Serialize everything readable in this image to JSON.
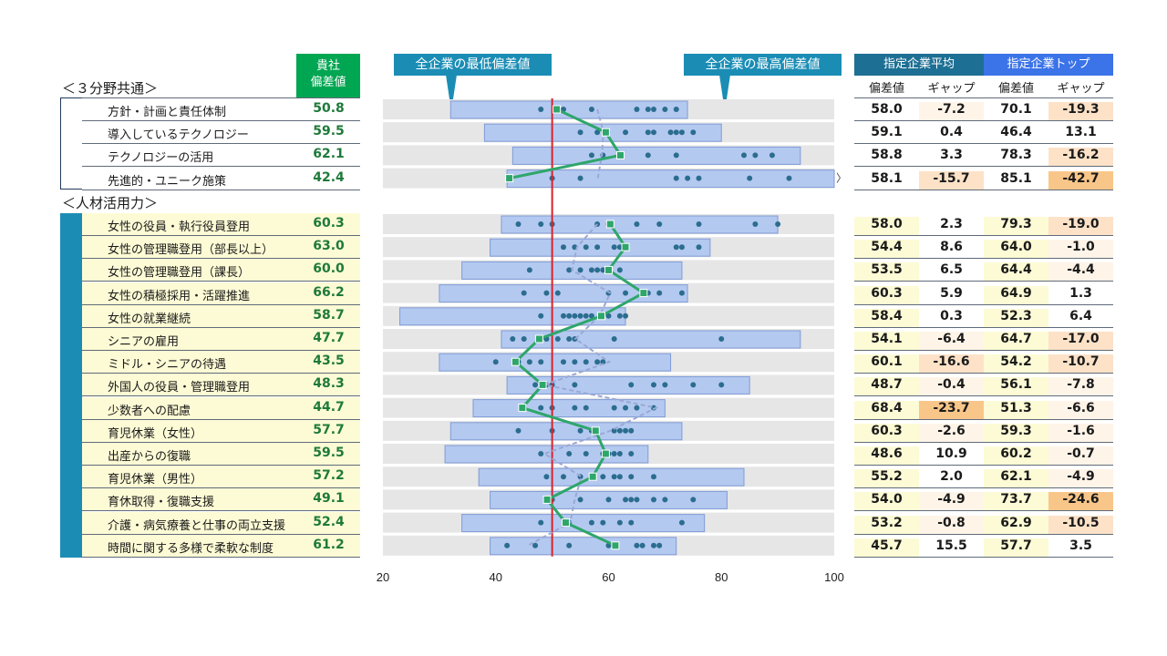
{
  "header": {
    "company_score_line1": "貴社",
    "company_score_line2": "偏差値",
    "callout_min": "全企業の最低偏差値",
    "callout_max": "全企業の最高偏差値",
    "avg_group": "指定企業平均",
    "top_group": "指定企業トップ",
    "col_score": "偏差値",
    "col_gap": "ギャップ"
  },
  "sections": [
    {
      "title": "＜３分野共通＞"
    },
    {
      "title": "＜人材活用力＞"
    }
  ],
  "rows": [
    {
      "label": "方針・計画と責任体制",
      "score": "50.8",
      "avg": "58.0",
      "avg_gap": "-7.2",
      "top": "70.1",
      "top_gap": "-19.3"
    },
    {
      "label": "導入しているテクノロジー",
      "score": "59.5",
      "avg": "59.1",
      "avg_gap": "0.4",
      "top": "46.4",
      "top_gap": "13.1"
    },
    {
      "label": "テクノロジーの活用",
      "score": "62.1",
      "avg": "58.8",
      "avg_gap": "3.3",
      "top": "78.3",
      "top_gap": "-16.2"
    },
    {
      "label": "先進的・ユニーク施策",
      "score": "42.4",
      "avg": "58.1",
      "avg_gap": "-15.7",
      "top": "85.1",
      "top_gap": "-42.7"
    },
    {
      "label": "女性の役員・執行役員登用",
      "score": "60.3",
      "avg": "58.0",
      "avg_gap": "2.3",
      "top": "79.3",
      "top_gap": "-19.0"
    },
    {
      "label": "女性の管理職登用（部長以上）",
      "score": "63.0",
      "avg": "54.4",
      "avg_gap": "8.6",
      "top": "64.0",
      "top_gap": "-1.0"
    },
    {
      "label": "女性の管理職登用（課長）",
      "score": "60.0",
      "avg": "53.5",
      "avg_gap": "6.5",
      "top": "64.4",
      "top_gap": "-4.4"
    },
    {
      "label": "女性の積極採用・活躍推進",
      "score": "66.2",
      "avg": "60.3",
      "avg_gap": "5.9",
      "top": "64.9",
      "top_gap": "1.3"
    },
    {
      "label": "女性の就業継続",
      "score": "58.7",
      "avg": "58.4",
      "avg_gap": "0.3",
      "top": "52.3",
      "top_gap": "6.4"
    },
    {
      "label": "シニアの雇用",
      "score": "47.7",
      "avg": "54.1",
      "avg_gap": "-6.4",
      "top": "64.7",
      "top_gap": "-17.0"
    },
    {
      "label": "ミドル・シニアの待遇",
      "score": "43.5",
      "avg": "60.1",
      "avg_gap": "-16.6",
      "top": "54.2",
      "top_gap": "-10.7"
    },
    {
      "label": "外国人の役員・管理職登用",
      "score": "48.3",
      "avg": "48.7",
      "avg_gap": "-0.4",
      "top": "56.1",
      "top_gap": "-7.8"
    },
    {
      "label": "少数者への配慮",
      "score": "44.7",
      "avg": "68.4",
      "avg_gap": "-23.7",
      "top": "51.3",
      "top_gap": "-6.6"
    },
    {
      "label": "育児休業（女性）",
      "score": "57.7",
      "avg": "60.3",
      "avg_gap": "-2.6",
      "top": "59.3",
      "top_gap": "-1.6"
    },
    {
      "label": "出産からの復職",
      "score": "59.5",
      "avg": "48.6",
      "avg_gap": "10.9",
      "top": "60.2",
      "top_gap": "-0.7"
    },
    {
      "label": "育児休業（男性）",
      "score": "57.2",
      "avg": "55.2",
      "avg_gap": "2.0",
      "top": "62.1",
      "top_gap": "-4.9"
    },
    {
      "label": "育休取得・復職支援",
      "score": "49.1",
      "avg": "54.0",
      "avg_gap": "-4.9",
      "top": "73.7",
      "top_gap": "-24.6"
    },
    {
      "label": "介護・病気療養と仕事の両立支援",
      "score": "52.4",
      "avg": "53.2",
      "avg_gap": "-0.8",
      "top": "62.9",
      "top_gap": "-10.5"
    },
    {
      "label": "時間に関する多様で柔軟な制度",
      "score": "61.2",
      "avg": "45.7",
      "avg_gap": "15.5",
      "top": "57.7",
      "top_gap": "3.5"
    }
  ],
  "chart_data": {
    "type": "scatter",
    "xlim": [
      20,
      100
    ],
    "x_ticks": [
      "20",
      "40",
      "60",
      "80",
      "100"
    ],
    "reference_line": 50,
    "colors": {
      "range_bar": "#b4c9f0",
      "company_line": "#2ea66a",
      "peer_dots": "#2b6d8f",
      "avg_line": "#9aa8d6",
      "reference": "#d9232d",
      "gap_warn": "#fde2c8",
      "gap_bad": "#f9c68a"
    },
    "ranges": [
      [
        32,
        74
      ],
      [
        38,
        80
      ],
      [
        43,
        94
      ],
      [
        42,
        100
      ],
      [
        41,
        90
      ],
      [
        39,
        78
      ],
      [
        34,
        73
      ],
      [
        30,
        74
      ],
      [
        23,
        63
      ],
      [
        41,
        94
      ],
      [
        30,
        71
      ],
      [
        42,
        85
      ],
      [
        36,
        70
      ],
      [
        32,
        73
      ],
      [
        31,
        67
      ],
      [
        37,
        84
      ],
      [
        39,
        81
      ],
      [
        34,
        77
      ],
      [
        39,
        72
      ]
    ],
    "company": [
      50.8,
      59.5,
      62.1,
      42.4,
      60.3,
      63.0,
      60.0,
      66.2,
      58.7,
      47.7,
      43.5,
      48.3,
      44.7,
      57.7,
      59.5,
      57.2,
      49.1,
      52.4,
      61.2
    ],
    "peer_avg": [
      58.0,
      59.1,
      58.8,
      58.1,
      58.0,
      54.4,
      53.5,
      60.3,
      58.4,
      54.1,
      60.1,
      48.7,
      68.4,
      60.3,
      48.6,
      55.2,
      54.0,
      53.2,
      45.7
    ],
    "peers": [
      [
        48,
        52,
        57,
        65,
        67,
        68,
        70,
        72
      ],
      [
        55,
        58,
        63,
        67,
        68,
        71,
        72,
        73,
        75
      ],
      [
        57,
        59,
        62,
        67,
        72,
        84,
        86,
        89
      ],
      [
        50,
        55,
        72,
        74,
        76,
        85,
        92
      ],
      [
        44,
        48,
        50,
        58,
        60,
        65,
        69,
        76,
        86,
        90
      ],
      [
        52,
        54,
        56,
        58,
        61,
        62,
        63,
        72,
        73,
        76
      ],
      [
        46,
        53,
        55,
        57,
        58,
        59,
        60,
        62
      ],
      [
        45,
        49,
        51,
        60,
        63,
        67,
        69,
        73
      ],
      [
        48,
        52,
        53,
        54,
        55,
        56,
        57,
        60,
        62,
        63
      ],
      [
        43,
        45,
        48,
        49,
        51,
        53,
        54,
        61,
        80
      ],
      [
        40,
        44,
        46,
        48,
        52,
        54,
        56,
        58,
        59
      ],
      [
        47,
        49,
        50,
        54,
        64,
        68,
        70,
        75,
        80
      ],
      [
        45,
        48,
        50,
        54,
        56,
        61,
        63,
        65,
        68
      ],
      [
        44,
        50,
        55,
        57,
        61,
        62,
        63,
        64
      ],
      [
        48,
        53,
        56,
        59,
        60,
        61,
        62,
        64
      ],
      [
        49,
        52,
        55,
        57,
        59,
        61,
        62,
        64,
        68
      ],
      [
        50,
        55,
        60,
        63,
        64,
        65,
        68,
        70,
        75
      ],
      [
        48,
        53,
        57,
        59,
        62,
        64,
        73
      ],
      [
        42,
        47,
        53,
        60,
        65,
        66,
        68,
        69
      ]
    ]
  }
}
